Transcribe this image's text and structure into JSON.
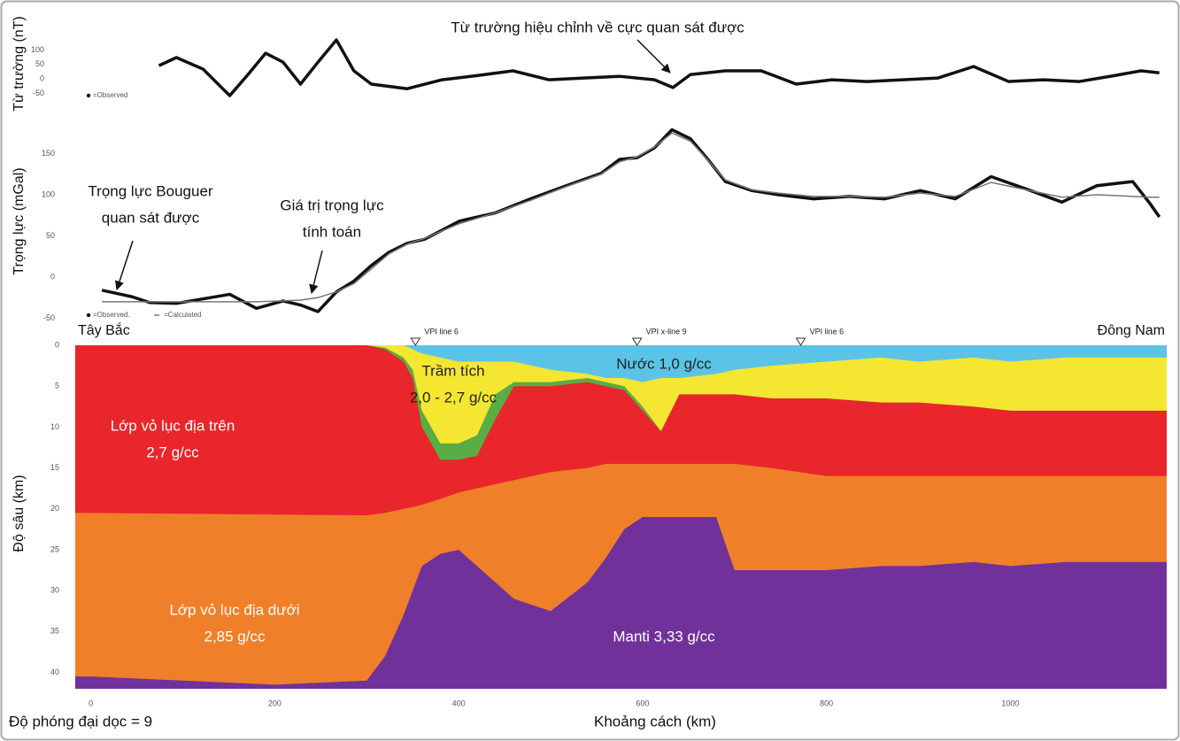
{
  "chart_data": [
    {
      "type": "line",
      "y_label": "Từ trường (nT)",
      "annotations": [
        {
          "lines": [
            "Từ trường hiệu chỉnh về cực quan sát được"
          ]
        }
      ],
      "xlim": [
        -17,
        1170
      ],
      "ylim": [
        -110,
        212
      ],
      "yticks": [
        100,
        50,
        0,
        -50
      ],
      "x": [
        74,
        93,
        122,
        151,
        170,
        190,
        209,
        228,
        247,
        267,
        286,
        305,
        344,
        382,
        421,
        459,
        498,
        536,
        575,
        613,
        633,
        652,
        690,
        729,
        767,
        806,
        844,
        883,
        921,
        960,
        998,
        1036,
        1075,
        1114,
        1142,
        1162
      ],
      "series": [
        {
          "name": "=Observed",
          "color": "#111111",
          "values": [
            46,
            74,
            34,
            -58,
            12,
            89,
            58,
            -18,
            58,
            135,
            28,
            -18,
            -34,
            -3,
            12,
            28,
            -3,
            3,
            9,
            -3,
            -30,
            15,
            28,
            28,
            -18,
            -3,
            -9,
            -3,
            3,
            43,
            -9,
            -3,
            -9,
            12,
            28,
            21
          ]
        }
      ]
    },
    {
      "type": "line",
      "y_label": "Trọng lực (mGal)",
      "annotations": [
        {
          "lines": [
            "Trọng lực Bouguer",
            "quan sát được"
          ]
        },
        {
          "lines": [
            "Giá trị trọng lực",
            "tính toán"
          ]
        }
      ],
      "xlim": [
        -17,
        1170
      ],
      "ylim": [
        -56,
        186
      ],
      "yticks": [
        150,
        100,
        50,
        0,
        -50
      ],
      "x": [
        12,
        45,
        64,
        93,
        151,
        180,
        209,
        228,
        247,
        267,
        286,
        305,
        324,
        344,
        363,
        401,
        440,
        478,
        517,
        555,
        575,
        594,
        613,
        632,
        652,
        671,
        690,
        719,
        748,
        786,
        825,
        863,
        902,
        940,
        979,
        1017,
        1056,
        1094,
        1133,
        1152,
        1162
      ],
      "series": [
        {
          "name": "=Observed.",
          "color": "#111111",
          "values": [
            -16,
            -24,
            -31,
            -32,
            -21,
            -38,
            -29,
            -34,
            -42,
            -18,
            -5,
            14,
            30,
            41,
            46,
            68,
            78,
            95,
            111,
            126,
            143,
            145,
            157,
            179,
            168,
            143,
            116,
            105,
            100,
            95,
            98,
            95,
            105,
            95,
            122,
            107,
            91,
            111,
            116,
            89,
            73
          ]
        },
        {
          "name": "=Calculated",
          "color": "#777777",
          "values": [
            -30,
            -30,
            -30,
            -30,
            -30,
            -30,
            -29,
            -28,
            -25,
            -18,
            -8,
            10,
            28,
            40,
            47,
            65,
            78,
            93,
            110,
            125,
            140,
            146,
            158,
            175,
            165,
            142,
            118,
            106,
            102,
            98,
            98,
            97,
            102,
            98,
            115,
            106,
            97,
            100,
            98,
            97,
            97
          ]
        }
      ]
    },
    {
      "type": "area",
      "y_label": "Độ sâu (km)",
      "x_label": "Khoảng cách (km)",
      "note": "Độ phóng đại dọc = 9",
      "corner_labels": [
        "Tây Bắc",
        "Đông Nam"
      ],
      "markers": [
        {
          "x": 353,
          "label": "VPI line 6"
        },
        {
          "x": 594,
          "label": "VPI x-line 9"
        },
        {
          "x": 772,
          "label": "VPI line 6"
        }
      ],
      "xlim": [
        -17,
        1170
      ],
      "ylim": [
        0,
        42
      ],
      "y_inverted": true,
      "xticks": [
        0,
        200,
        400,
        600,
        800,
        1000
      ],
      "yticks": [
        0,
        5,
        10,
        15,
        20,
        25,
        30,
        35,
        40
      ],
      "x": [
        -17,
        0,
        100,
        200,
        300,
        320,
        340,
        350,
        360,
        380,
        400,
        420,
        440,
        460,
        500,
        540,
        560,
        580,
        600,
        620,
        640,
        680,
        700,
        740,
        800,
        860,
        900,
        960,
        1000,
        1060,
        1100,
        1170
      ],
      "layers": [
        {
          "label": [
            "Nước 1,0 g/cc"
          ],
          "color": "#5bc4e6",
          "values": [
            0,
            0,
            0,
            0,
            0,
            0,
            0,
            0.5,
            1,
            1.5,
            2,
            2,
            2,
            2,
            3,
            3.5,
            4,
            4,
            4.5,
            4,
            4,
            3.5,
            3,
            2.5,
            2,
            1.5,
            2,
            1.5,
            2,
            1.5,
            1.5,
            1.5
          ]
        },
        {
          "label": [
            "Trầm tích",
            "2,0 - 2,7 g/cc"
          ],
          "color": "#f5e632",
          "values": [
            0,
            0,
            0,
            0,
            0,
            0.3,
            1.5,
            3,
            8,
            12,
            12,
            11,
            6,
            4.5,
            4.5,
            4,
            4.5,
            5,
            7.5,
            10.5,
            6,
            6,
            6,
            6.5,
            6.5,
            7,
            7,
            7.5,
            8,
            8,
            8,
            8
          ]
        },
        {
          "color": "#5aac45",
          "values": [
            0,
            0,
            0,
            0,
            0,
            0.5,
            2,
            4,
            10,
            14,
            14,
            13.5,
            9,
            5,
            5,
            4.5,
            5,
            5.5,
            8,
            10.5,
            6,
            6,
            6,
            6.5,
            6.5,
            7,
            7,
            7.5,
            8,
            8,
            8,
            8
          ]
        },
        {
          "label": [
            "Lớp vỏ lục địa trên",
            "2,7 g/cc"
          ],
          "color": "#e8262b",
          "values": [
            20.5,
            20.5,
            20.6,
            20.7,
            20.8,
            20.5,
            20,
            19.8,
            19.5,
            18.8,
            18,
            17.5,
            17,
            16.5,
            15.5,
            15,
            14.5,
            14.5,
            14.5,
            14.5,
            14.5,
            14.5,
            14.5,
            15,
            16,
            16,
            16,
            16,
            16,
            16,
            16,
            16
          ]
        },
        {
          "label": [
            "Lớp vỏ lục địa dưới",
            "2,85 g/cc"
          ],
          "color": "#f07f2a",
          "values": [
            40.5,
            40.5,
            41,
            41.5,
            41,
            38,
            33,
            30,
            27,
            25.5,
            25,
            27,
            29,
            31,
            32.5,
            29,
            26,
            22.5,
            21,
            21,
            21,
            21,
            27.5,
            27.5,
            27.5,
            27,
            27,
            26.5,
            27,
            26.5,
            26.5,
            26.5
          ]
        },
        {
          "label": [
            "Manti 3,33 g/cc"
          ],
          "color": "#70329a"
        }
      ]
    }
  ]
}
